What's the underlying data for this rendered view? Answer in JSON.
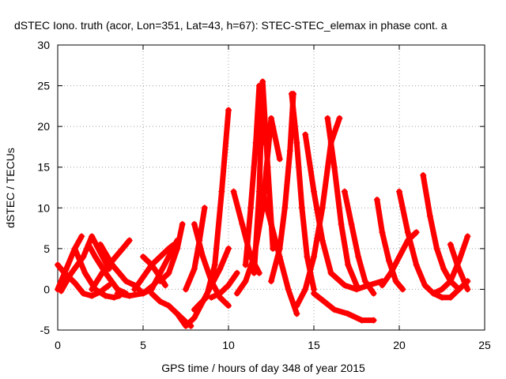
{
  "chart_data": {
    "type": "scatter",
    "title": "dSTEC Iono. truth (acor, Lon=351, Lat=43, h=67): STEC-STEC_elemax in phase cont. a",
    "xlabel": "GPS time / hours of day 348 of year 2015",
    "ylabel": "dSTEC  / TECUs",
    "xlim": [
      0,
      25
    ],
    "ylim": [
      -5,
      30
    ],
    "xticks": [
      0,
      5,
      10,
      15,
      20,
      25
    ],
    "yticks": [
      -5,
      0,
      5,
      10,
      15,
      20,
      25,
      30
    ],
    "xtick_labels": [
      "0",
      "5",
      "10",
      "15",
      "20",
      "25"
    ],
    "ytick_labels": [
      "-5",
      "0",
      "5",
      "10",
      "15",
      "20",
      "25",
      "30"
    ],
    "grid": true,
    "marker": "+",
    "color": "#ff0000",
    "series": [
      {
        "x": [
          0.0,
          0.5,
          1.0,
          1.4
        ],
        "y": [
          0.0,
          2.5,
          5.0,
          6.5
        ]
      },
      {
        "x": [
          0.0,
          0.4,
          1.0,
          1.5,
          2.0,
          2.5,
          3.0
        ],
        "y": [
          3.0,
          2.0,
          0.8,
          -0.5,
          -0.8,
          -0.3,
          0.5
        ]
      },
      {
        "x": [
          0.2,
          0.8,
          1.5,
          2.0,
          2.5,
          3.0
        ],
        "y": [
          -0.2,
          2.0,
          4.0,
          6.5,
          4.5,
          2.5
        ]
      },
      {
        "x": [
          1.0,
          1.6,
          2.2,
          2.8,
          3.3,
          3.6
        ],
        "y": [
          5.0,
          2.0,
          0.0,
          -0.8,
          -1.0,
          -0.8
        ]
      },
      {
        "x": [
          1.8,
          2.2,
          2.8,
          3.5,
          4.0
        ],
        "y": [
          5.5,
          4.0,
          2.0,
          0.0,
          -0.5
        ]
      },
      {
        "x": [
          2.0,
          2.6,
          3.2,
          3.8,
          4.2
        ],
        "y": [
          0.0,
          2.0,
          3.5,
          5.0,
          6.0
        ]
      },
      {
        "x": [
          2.5,
          3.2,
          4.0,
          4.5,
          5.0,
          5.5,
          6.0,
          6.5,
          7.0
        ],
        "y": [
          5.5,
          3.0,
          1.0,
          0.5,
          -0.5,
          0.0,
          2.0,
          4.0,
          6.0
        ]
      },
      {
        "x": [
          3.5,
          4.2,
          5.0,
          5.6,
          6.0
        ],
        "y": [
          -0.5,
          -0.8,
          -0.5,
          0.5,
          1.5
        ]
      },
      {
        "x": [
          4.5,
          5.0,
          5.5,
          6.0,
          6.5,
          6.8
        ],
        "y": [
          0.0,
          1.5,
          3.0,
          4.0,
          5.0,
          5.5
        ]
      },
      {
        "x": [
          5.0,
          5.5,
          6.0,
          6.3
        ],
        "y": [
          4.0,
          3.0,
          1.5,
          0.5
        ]
      },
      {
        "x": [
          5.5,
          6.0,
          6.5,
          7.0,
          7.5,
          7.8
        ],
        "y": [
          -0.5,
          -1.5,
          -2.0,
          -3.0,
          -4.0,
          -4.5
        ]
      },
      {
        "x": [
          6.0,
          6.5,
          7.0,
          7.3
        ],
        "y": [
          1.0,
          2.0,
          5.0,
          8.0
        ]
      },
      {
        "x": [
          7.0,
          7.5,
          8.0,
          8.5,
          9.0,
          9.5,
          10.0
        ],
        "y": [
          -3.0,
          -4.5,
          -3.5,
          -1.5,
          0.5,
          2.5,
          5.0
        ]
      },
      {
        "x": [
          7.5,
          8.0,
          8.3,
          8.6
        ],
        "y": [
          0.0,
          2.5,
          6.0,
          10.0
        ]
      },
      {
        "x": [
          8.0,
          8.5,
          9.0,
          9.5,
          10.0
        ],
        "y": [
          8.0,
          4.0,
          1.0,
          -1.0,
          -2.0
        ]
      },
      {
        "x": [
          8.0,
          8.7,
          9.2,
          9.6,
          10.0
        ],
        "y": [
          -2.5,
          -1.0,
          3.0,
          12.0,
          22.0
        ]
      },
      {
        "x": [
          9.0,
          9.5,
          10.0,
          10.5
        ],
        "y": [
          -1.0,
          -0.5,
          0.5,
          2.0
        ]
      },
      {
        "x": [
          10.3,
          10.8,
          11.3,
          11.8
        ],
        "y": [
          12.0,
          8.0,
          4.0,
          2.0
        ]
      },
      {
        "x": [
          11.0,
          11.3,
          11.6,
          11.8,
          12.0
        ],
        "y": [
          3.0,
          10.0,
          18.0,
          25.0,
          18.0
        ]
      },
      {
        "x": [
          11.5,
          11.8,
          12.0,
          12.3,
          12.6
        ],
        "y": [
          2.0,
          12.0,
          25.5,
          15.0,
          5.0
        ]
      },
      {
        "x": [
          10.5,
          11.0,
          11.5,
          12.0,
          12.5,
          13.0
        ],
        "y": [
          -0.5,
          1.0,
          4.0,
          10.0,
          21.0,
          16.0
        ]
      },
      {
        "x": [
          12.0,
          12.5,
          13.0,
          13.5,
          14.0
        ],
        "y": [
          12.0,
          8.0,
          4.0,
          0.0,
          -3.0
        ]
      },
      {
        "x": [
          12.5,
          13.0,
          13.3,
          13.6,
          13.8
        ],
        "y": [
          1.0,
          5.0,
          10.0,
          17.0,
          24.0
        ]
      },
      {
        "x": [
          13.7,
          14.0,
          14.3,
          14.6,
          15.0
        ],
        "y": [
          24.0,
          18.0,
          10.0,
          4.0,
          0.0
        ]
      },
      {
        "x": [
          14.0,
          14.5,
          15.0,
          15.5,
          16.0,
          16.5
        ],
        "y": [
          -2.0,
          0.0,
          4.0,
          10.0,
          18.0,
          21.0
        ]
      },
      {
        "x": [
          14.5,
          15.0,
          15.5,
          16.0
        ],
        "y": [
          19.0,
          12.0,
          6.0,
          2.0
        ]
      },
      {
        "x": [
          15.8,
          16.2,
          16.6,
          17.0,
          17.5
        ],
        "y": [
          21.0,
          15.0,
          8.0,
          3.0,
          0.5
        ]
      },
      {
        "x": [
          15.0,
          15.6,
          16.2,
          17.0,
          17.8,
          18.5
        ],
        "y": [
          -0.5,
          -1.5,
          -2.5,
          -3.0,
          -3.8,
          -3.8
        ]
      },
      {
        "x": [
          16.8,
          17.2,
          17.6,
          18.0,
          18.5
        ],
        "y": [
          12.0,
          8.0,
          4.0,
          1.0,
          -0.5
        ]
      },
      {
        "x": [
          16.0,
          16.8,
          17.5,
          18.2,
          19.0
        ],
        "y": [
          2.0,
          0.5,
          0.0,
          0.5,
          1.0
        ]
      },
      {
        "x": [
          18.7,
          19.0,
          19.4,
          19.8,
          20.2
        ],
        "y": [
          11.0,
          7.0,
          3.5,
          1.0,
          0.0
        ]
      },
      {
        "x": [
          19.0,
          19.5,
          20.0,
          20.5,
          21.0
        ],
        "y": [
          0.5,
          2.0,
          4.0,
          6.0,
          7.0
        ]
      },
      {
        "x": [
          20.0,
          20.5,
          21.0,
          21.5,
          22.0,
          22.5,
          23.0,
          23.5,
          24.0
        ],
        "y": [
          12.0,
          7.0,
          3.0,
          0.5,
          -0.5,
          -1.0,
          -1.0,
          0.0,
          1.0
        ]
      },
      {
        "x": [
          21.4,
          21.8,
          22.2,
          22.6,
          23.0,
          23.5
        ],
        "y": [
          14.0,
          9.0,
          5.0,
          2.5,
          1.0,
          0.0
        ]
      },
      {
        "x": [
          22.0,
          22.5,
          23.0,
          23.5,
          24.0
        ],
        "y": [
          -0.5,
          0.0,
          1.0,
          3.5,
          6.5
        ]
      },
      {
        "x": [
          23.0,
          23.4,
          23.8,
          24.0
        ],
        "y": [
          5.5,
          3.0,
          1.0,
          0.0
        ]
      }
    ]
  }
}
